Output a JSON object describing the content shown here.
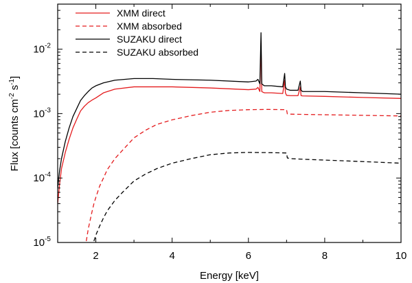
{
  "chart_data": {
    "type": "line",
    "xlabel": "Energy [keV]",
    "ylabel": {
      "prefix": "Flux [counts cm",
      "exp1": "-2",
      "mid": " s",
      "exp2": "-1",
      "suffix": "]"
    },
    "xlim": [
      1,
      10
    ],
    "ylim": [
      1e-05,
      0.05
    ],
    "yscale": "log",
    "grid": false,
    "legend_position": "top-left",
    "x_ticks": [
      {
        "value": 2,
        "label": "2"
      },
      {
        "value": 4,
        "label": "4"
      },
      {
        "value": 6,
        "label": "6"
      },
      {
        "value": 8,
        "label": "8"
      },
      {
        "value": 10,
        "label": "10"
      }
    ],
    "y_ticks": [
      {
        "value": 1e-05,
        "base": "10",
        "exp": "-5"
      },
      {
        "value": 0.0001,
        "base": "10",
        "exp": "-4"
      },
      {
        "value": 0.001,
        "base": "10",
        "exp": "-3"
      },
      {
        "value": 0.01,
        "base": "10",
        "exp": "-2"
      }
    ],
    "series": [
      {
        "name": "XMM direct",
        "color": "#e41a1c",
        "dash": "solid",
        "x": [
          1.0,
          1.05,
          1.1,
          1.2,
          1.3,
          1.4,
          1.5,
          1.6,
          1.7,
          1.8,
          1.9,
          2.0,
          2.2,
          2.5,
          3.0,
          3.5,
          4.0,
          5.0,
          6.0,
          6.2,
          6.25,
          6.3,
          6.33,
          6.35,
          6.38,
          6.42,
          6.6,
          6.9,
          6.95,
          6.97,
          7.0,
          7.1,
          7.3,
          7.36,
          7.38,
          7.42,
          8.0,
          9.0,
          10.0
        ],
        "y": [
          4e-05,
          8e-05,
          0.00014,
          0.00025,
          0.0004,
          0.0006,
          0.00082,
          0.0011,
          0.0013,
          0.00148,
          0.00162,
          0.00175,
          0.0021,
          0.0024,
          0.0026,
          0.0026,
          0.0026,
          0.0025,
          0.00235,
          0.0024,
          0.00255,
          0.0022,
          0.0125,
          0.0022,
          0.00215,
          0.0021,
          0.0021,
          0.00205,
          0.0033,
          0.0021,
          0.00192,
          0.0019,
          0.0019,
          0.0026,
          0.0019,
          0.00188,
          0.00185,
          0.00178,
          0.00172
        ]
      },
      {
        "name": "XMM absorbed",
        "color": "#e41a1c",
        "dash": "dashed",
        "x": [
          1.75,
          1.8,
          1.85,
          1.9,
          1.95,
          2.0,
          2.1,
          2.2,
          2.3,
          2.5,
          2.7,
          3.0,
          3.3,
          3.6,
          4.0,
          4.5,
          5.0,
          5.5,
          6.0,
          6.5,
          7.0,
          7.02,
          7.1,
          7.5,
          8.0,
          8.5,
          9.0,
          9.5,
          10.0
        ],
        "y": [
          1.05e-05,
          1.6e-05,
          2.2e-05,
          3e-05,
          4e-05,
          5e-05,
          7.5e-05,
          0.0001,
          0.000135,
          0.0002,
          0.00027,
          0.00042,
          0.00055,
          0.00068,
          0.0008,
          0.00093,
          0.00105,
          0.00112,
          0.00115,
          0.00116,
          0.00115,
          0.00099,
          0.00098,
          0.00097,
          0.00096,
          0.00095,
          0.00094,
          0.00093,
          0.00092
        ]
      },
      {
        "name": "SUZAKU direct",
        "color": "#000000",
        "dash": "solid",
        "x": [
          1.0,
          1.05,
          1.1,
          1.2,
          1.3,
          1.4,
          1.5,
          1.6,
          1.7,
          1.8,
          1.9,
          2.0,
          2.2,
          2.5,
          3.0,
          3.5,
          4.0,
          5.0,
          6.0,
          6.2,
          6.25,
          6.3,
          6.33,
          6.35,
          6.38,
          6.42,
          6.6,
          6.9,
          6.95,
          6.97,
          7.0,
          7.1,
          7.3,
          7.36,
          7.38,
          7.42,
          8.0,
          9.0,
          10.0
        ],
        "y": [
          7e-05,
          0.00013,
          0.0002,
          0.00037,
          0.0006,
          0.0009,
          0.0012,
          0.0016,
          0.0019,
          0.0022,
          0.0025,
          0.0027,
          0.003,
          0.0033,
          0.0035,
          0.0035,
          0.0034,
          0.0033,
          0.0031,
          0.0032,
          0.0034,
          0.0029,
          0.018,
          0.0029,
          0.0028,
          0.0027,
          0.0027,
          0.0026,
          0.0042,
          0.0026,
          0.0024,
          0.0023,
          0.0023,
          0.0032,
          0.0023,
          0.0022,
          0.0022,
          0.0021,
          0.002
        ]
      },
      {
        "name": "SUZAKU absorbed",
        "color": "#000000",
        "dash": "dashed",
        "x": [
          1.95,
          2.0,
          2.1,
          2.2,
          2.3,
          2.5,
          2.7,
          3.0,
          3.3,
          3.6,
          4.0,
          4.5,
          5.0,
          5.5,
          6.0,
          6.5,
          7.0,
          7.02,
          7.1,
          7.5,
          8.0,
          8.5,
          9.0,
          9.5,
          10.0
        ],
        "y": [
          1.05e-05,
          1.3e-05,
          1.8e-05,
          2.4e-05,
          3.1e-05,
          4.5e-05,
          6e-05,
          9e-05,
          0.000115,
          0.00014,
          0.00017,
          0.0002,
          0.00023,
          0.000245,
          0.00025,
          0.000248,
          0.000245,
          0.000205,
          0.0002,
          0.000195,
          0.00019,
          0.000185,
          0.00018,
          0.000175,
          0.00017
        ]
      }
    ]
  }
}
